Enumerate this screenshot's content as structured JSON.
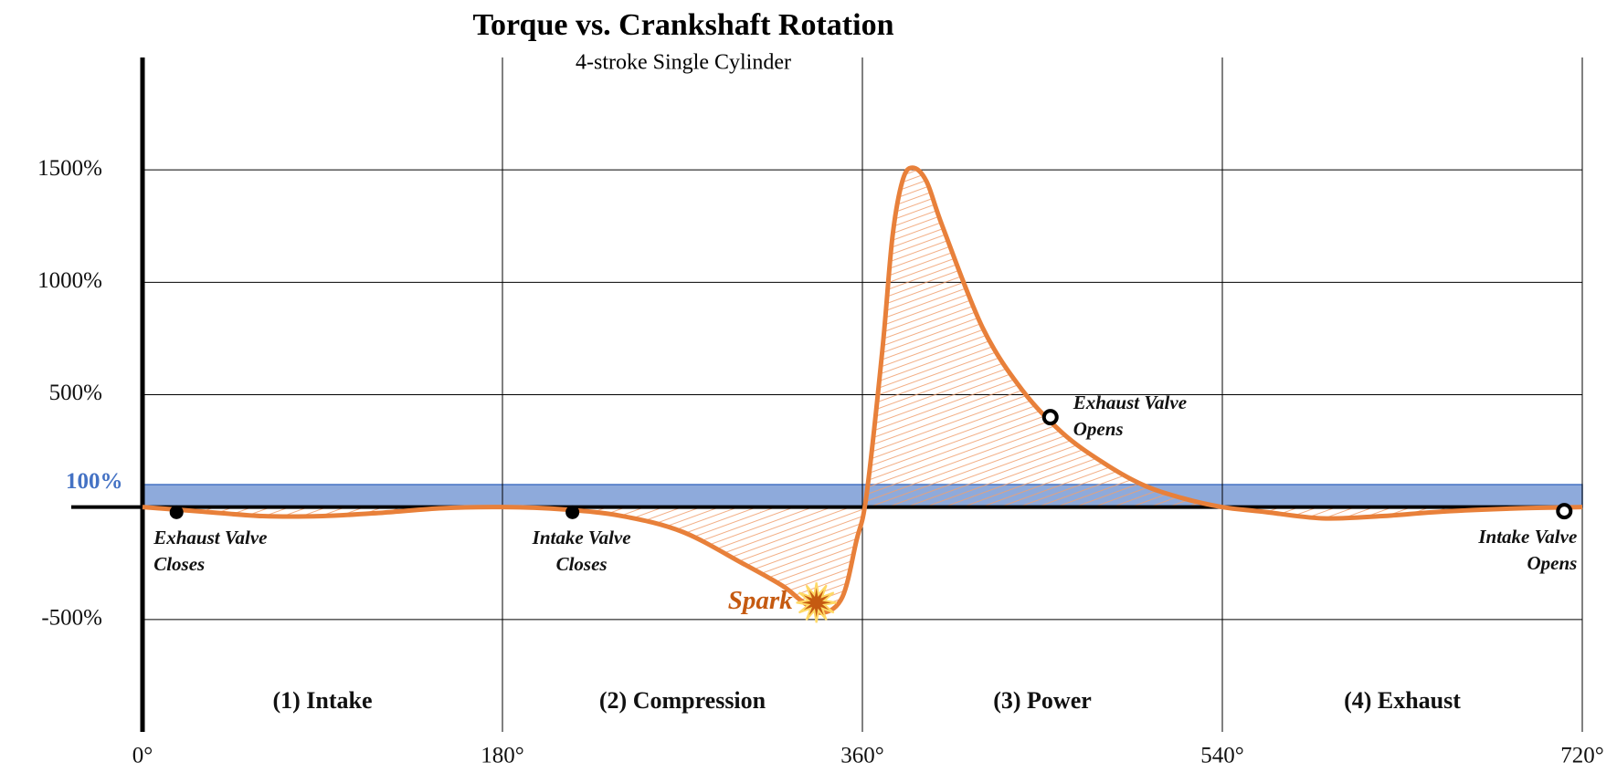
{
  "chart_data": {
    "type": "line",
    "title": "Torque vs. Crankshaft Rotation",
    "subtitle": "4-stroke Single Cylinder",
    "x": [
      0,
      30,
      60,
      90,
      120,
      150,
      180,
      210,
      240,
      270,
      300,
      320,
      330,
      340,
      350,
      357,
      362,
      370,
      375,
      380,
      385,
      392,
      400,
      420,
      440,
      460,
      480,
      500,
      520,
      540,
      560,
      590,
      620,
      650,
      690,
      720
    ],
    "values": [
      0,
      -20,
      -40,
      -40,
      -25,
      -5,
      0,
      -10,
      -40,
      -110,
      -250,
      -350,
      -420,
      -470,
      -400,
      -150,
      50,
      700,
      1200,
      1450,
      1510,
      1450,
      1250,
      800,
      520,
      330,
      200,
      100,
      40,
      0,
      -20,
      -50,
      -40,
      -20,
      -5,
      0
    ],
    "color": "#e8803a",
    "xlim": [
      0,
      720
    ],
    "xticks": [
      {
        "value": 0,
        "label": "0°"
      },
      {
        "value": 180,
        "label": "180°"
      },
      {
        "value": 360,
        "label": "360°"
      },
      {
        "value": 540,
        "label": "540°"
      },
      {
        "value": 720,
        "label": "720°"
      }
    ],
    "ylim": [
      -1000,
      2000
    ],
    "yticks": [
      {
        "value": -500,
        "label": "-500%"
      },
      {
        "value": 500,
        "label": "500%"
      },
      {
        "value": 1000,
        "label": "1000%"
      },
      {
        "value": 1500,
        "label": "1500%"
      }
    ],
    "grid": true,
    "reference_band": {
      "label": "100%",
      "value": 100,
      "color": "#8eaadb"
    },
    "phases": [
      "(1) Intake",
      "(2) Compression",
      "(3) Power",
      "(4) Exhaust"
    ],
    "annotations": [
      {
        "lines": [
          "Exhaust Valve",
          "Closes"
        ],
        "x": 17,
        "y": -23,
        "marker": "filled"
      },
      {
        "lines": [
          "Intake Valve",
          "Closes"
        ],
        "x": 215,
        "y": -23,
        "marker": "filled"
      },
      {
        "lines": [
          "Exhaust Valve",
          "Opens"
        ],
        "x": 454,
        "y": 400,
        "marker": "hollow"
      },
      {
        "lines": [
          "Intake Valve",
          "Opens"
        ],
        "x": 711,
        "y": -18,
        "marker": "hollow"
      }
    ],
    "spark": {
      "label": "Spark",
      "x": 337,
      "y": -425,
      "color": "#c55a11"
    }
  }
}
